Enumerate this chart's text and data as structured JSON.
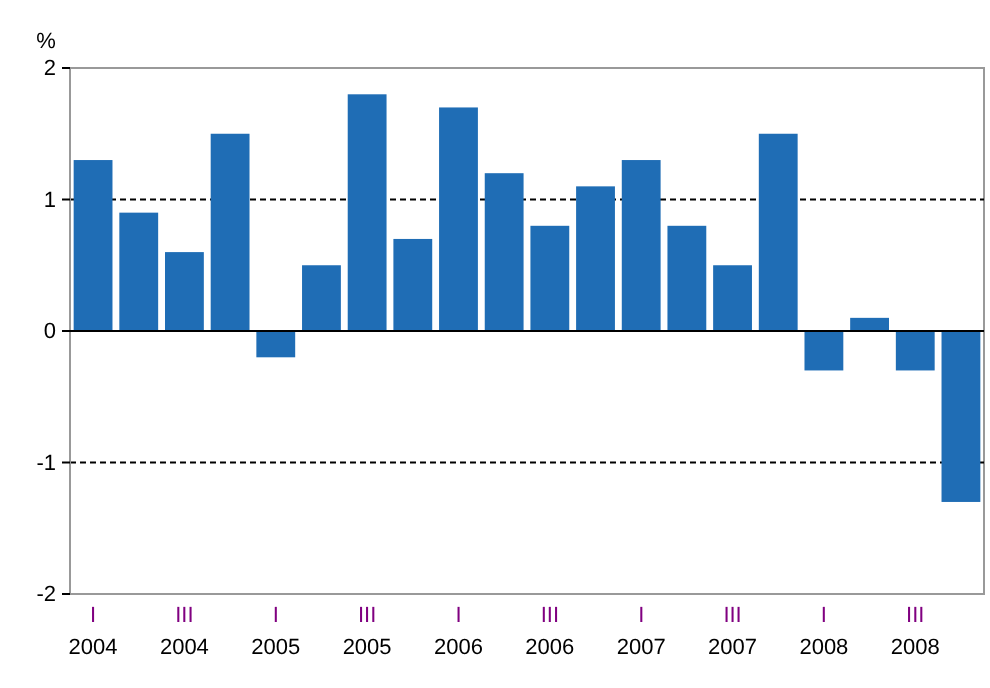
{
  "chart_data": {
    "type": "bar",
    "ylabel": "%",
    "categories": [
      "I 2004",
      null,
      "III 2004",
      null,
      "I 2005",
      null,
      "III 2005",
      null,
      "I 2006",
      null,
      "III 2006",
      null,
      "I 2007",
      null,
      "III 2007",
      null,
      "I 2008",
      null,
      "III 2008",
      null
    ],
    "values": [
      1.3,
      0.9,
      0.6,
      1.5,
      -0.2,
      0.5,
      1.8,
      0.7,
      1.7,
      1.2,
      0.8,
      1.1,
      1.3,
      0.8,
      0.5,
      1.5,
      -0.3,
      0.1,
      -0.3,
      -1.3
    ],
    "color": "#1f6db5",
    "ylim": [
      -2,
      2
    ],
    "yticks": [
      -2,
      -1,
      0,
      1,
      2
    ],
    "grid": "y"
  }
}
